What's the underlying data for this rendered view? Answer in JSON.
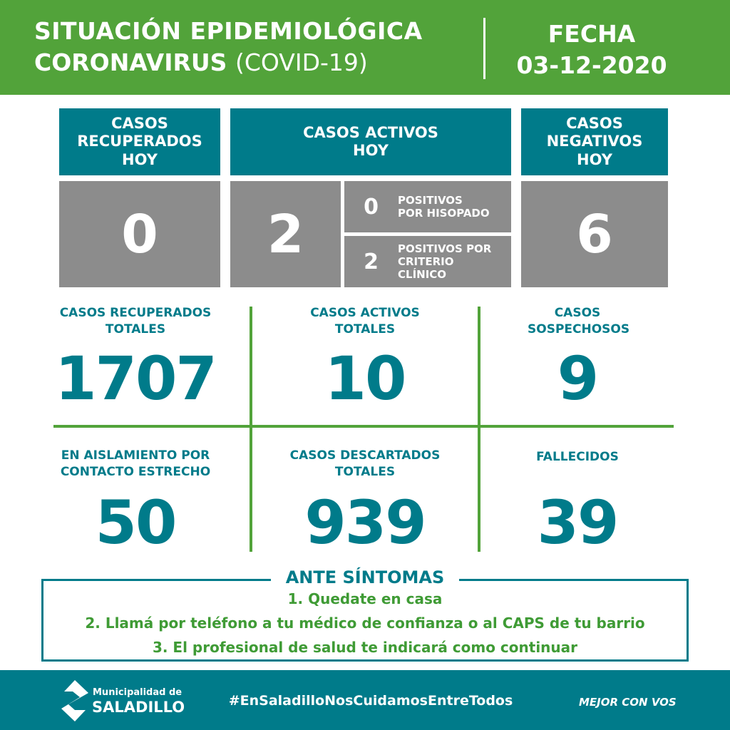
{
  "header": {
    "title_line1": "SITUACIÓN EPIDEMIOLÓGICA",
    "title_line2_bold": "CORONAVIRUS",
    "title_line2_light": "(COVID-19)",
    "date_label": "FECHA",
    "date_value": "03-12-2020"
  },
  "colors": {
    "green": "#52a33a",
    "teal": "#007b8a",
    "gray": "#8c8c8c"
  },
  "today": {
    "recovered": {
      "label": "CASOS RECUPERADOS HOY",
      "value": "0"
    },
    "active": {
      "label": "CASOS ACTIVOS HOY",
      "value": "2",
      "swab": {
        "value": "0",
        "label": "POSITIVOS POR HISOPADO"
      },
      "clinical": {
        "value": "2",
        "label": "POSITIVOS POR CRITERIO CLÍNICO"
      }
    },
    "negative": {
      "label": "CASOS NEGATIVOS HOY",
      "value": "6"
    }
  },
  "totals": [
    {
      "label": "CASOS RECUPERADOS TOTALES",
      "value": "1707"
    },
    {
      "label": "CASOS ACTIVOS TOTALES",
      "value": "10"
    },
    {
      "label": "CASOS SOSPECHOSOS",
      "value": "9"
    },
    {
      "label": "EN AISLAMIENTO POR CONTACTO ESTRECHO",
      "value": "50"
    },
    {
      "label": "CASOS DESCARTADOS TOTALES",
      "value": "939"
    },
    {
      "label": "FALLECIDOS",
      "value": "39"
    }
  ],
  "symptoms": {
    "title": "ANTE SÍNTOMAS",
    "steps": [
      "1. Quedate en casa",
      "2. Llamá por teléfono a tu médico de confianza o al CAPS de tu barrio",
      "3. El profesional de salud te indicará como continuar"
    ]
  },
  "footer": {
    "logo_top": "Municipalidad de",
    "logo_bottom": "SALADILLO",
    "hashtag": "#EnSaladilloNosCuidamosEntreTodos",
    "slogan": "MEJOR CON VOS"
  }
}
